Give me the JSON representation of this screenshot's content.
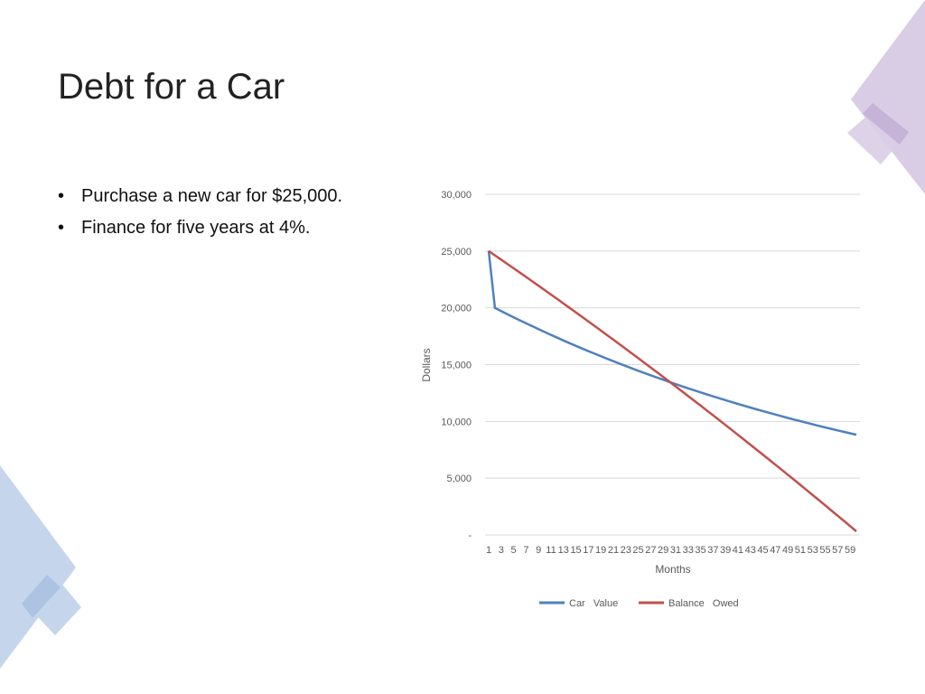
{
  "slide": {
    "title": "Debt for a Car",
    "bullets": [
      {
        "marker": "•",
        "text": "Purchase a new car for $25,000."
      },
      {
        "marker": "•",
        "text": "Finance for five years at 4%."
      }
    ]
  },
  "colors": {
    "car_value": "#4f81bd",
    "balance_owed": "#c0504d",
    "grid": "#d9d9d9",
    "decor_purple": "#c9b8d9",
    "decor_blue": "#b8cde6"
  },
  "chart_data": {
    "type": "line",
    "title": "",
    "xlabel": "Months",
    "ylabel": "Dollars",
    "x": [
      1,
      2,
      3,
      4,
      5,
      6,
      7,
      8,
      9,
      10,
      11,
      12,
      13,
      14,
      15,
      16,
      17,
      18,
      19,
      20,
      21,
      22,
      23,
      24,
      25,
      26,
      27,
      28,
      29,
      30,
      31,
      32,
      33,
      34,
      35,
      36,
      37,
      38,
      39,
      40,
      41,
      42,
      43,
      44,
      45,
      46,
      47,
      48,
      49,
      50,
      51,
      52,
      53,
      54,
      55,
      56,
      57,
      58,
      59,
      60
    ],
    "x_tick_labels": [
      "1",
      "3",
      "5",
      "7",
      "9",
      "11",
      "13",
      "15",
      "17",
      "19",
      "21",
      "23",
      "25",
      "27",
      "29",
      "31",
      "33",
      "35",
      "37",
      "39",
      "41",
      "43",
      "45",
      "47",
      "49",
      "51",
      "53",
      "55",
      "57",
      "59"
    ],
    "y_ticks": [
      0,
      5000,
      10000,
      15000,
      20000,
      25000,
      30000
    ],
    "y_tick_labels": [
      "-",
      "5,000",
      "10,000",
      "15,000",
      "20,000",
      "25,000",
      "30,000"
    ],
    "ylim": [
      0,
      30000
    ],
    "grid": true,
    "legend_position": "bottom",
    "series": [
      {
        "name": "Car   Value",
        "color": "#4f81bd",
        "values": [
          25000,
          20000,
          19720,
          19444,
          19172,
          18903,
          18639,
          18378,
          18121,
          17867,
          17617,
          17370,
          17127,
          16887,
          16651,
          16418,
          16188,
          15961,
          15738,
          15517,
          15300,
          15086,
          14874,
          14666,
          14461,
          14258,
          14059,
          13862,
          13668,
          13476,
          13288,
          13102,
          12918,
          12737,
          12559,
          12383,
          12210,
          12039,
          11870,
          11704,
          11540,
          11379,
          11219,
          11062,
          10907,
          10755,
          10604,
          10456,
          10309,
          10165,
          10023,
          9882,
          9744,
          9608,
          9473,
          9340,
          9210,
          9081,
          8954,
          8828
        ]
      },
      {
        "name": "Balance   Owed",
        "color": "#c0504d",
        "values": [
          25000,
          24623,
          24244,
          23864,
          23483,
          23100,
          22716,
          22331,
          21944,
          21556,
          21166,
          20775,
          20383,
          19989,
          19594,
          19197,
          18799,
          18400,
          17999,
          17597,
          17193,
          16788,
          16382,
          15974,
          15565,
          15154,
          14742,
          14329,
          13914,
          13497,
          13079,
          12660,
          12239,
          11817,
          11393,
          10968,
          10541,
          10113,
          9684,
          9253,
          8820,
          8386,
          7951,
          7514,
          7075,
          6635,
          6194,
          5751,
          5306,
          4860,
          4413,
          3964,
          3513,
          3061,
          2607,
          2152,
          1696,
          1238,
          778,
          317
        ]
      }
    ]
  }
}
